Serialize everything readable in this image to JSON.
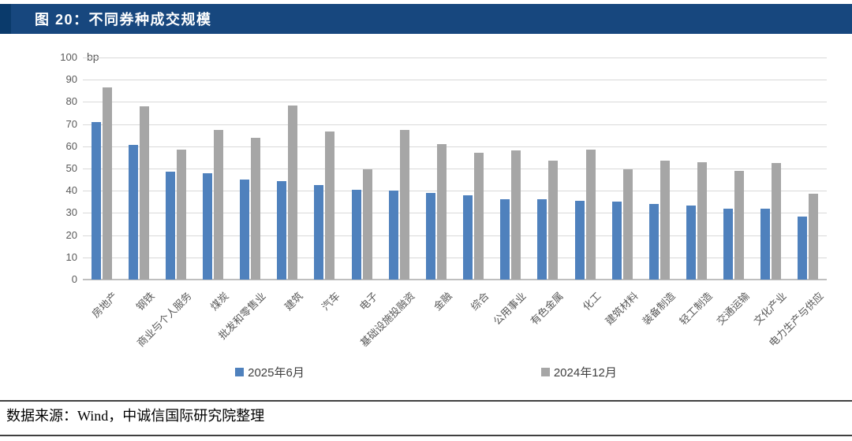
{
  "header": {
    "title": "图 20：不同券种成交规模",
    "bg_color": "#17477E",
    "accent_color": "#0A3A6B"
  },
  "chart_data": {
    "type": "bar",
    "title": "不同券种成交规模",
    "unit": "bp",
    "xlabel": "",
    "ylabel": "bp",
    "ylim": [
      0,
      100
    ],
    "ytick_step": 10,
    "grid": "horizontal",
    "legend_position": "bottom",
    "categories": [
      "房地产",
      "钢铁",
      "商业与个人服务",
      "煤炭",
      "批发和零售业",
      "建筑",
      "汽车",
      "电子",
      "基础设施投融资",
      "金融",
      "综合",
      "公用事业",
      "有色金属",
      "化工",
      "建筑材料",
      "装备制造",
      "轻工制造",
      "交通运输",
      "文化产业",
      "电力生产与供应"
    ],
    "series": [
      {
        "name": "2025年6月",
        "color": "#4F81BD",
        "values": [
          71,
          60.5,
          48.5,
          48,
          45,
          44.5,
          42.5,
          40.5,
          40,
          39,
          38,
          36,
          36,
          35.5,
          35,
          34,
          33.5,
          32,
          32,
          28.5
        ]
      },
      {
        "name": "2024年12月",
        "color": "#A6A6A6",
        "values": [
          86.5,
          78,
          58.5,
          67.5,
          64,
          78.5,
          66.5,
          49.5,
          67.5,
          61,
          57,
          58,
          53.5,
          58.5,
          49.5,
          53.5,
          53,
          49,
          52.5,
          38.5
        ]
      }
    ],
    "colors": {
      "gridline": "#D9D9D9",
      "axis": "#BFBFBF",
      "tick_text": "#595959",
      "legend_text": "#404040"
    }
  },
  "footer": {
    "source_text": "数据来源：Wind，中诚信国际研究院整理"
  }
}
